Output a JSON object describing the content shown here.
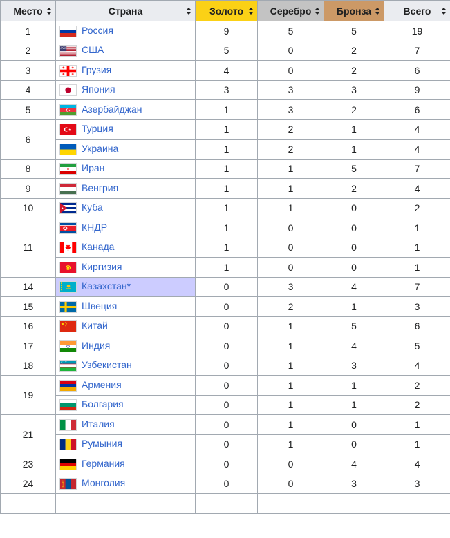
{
  "table": {
    "columns": [
      {
        "label": "Место"
      },
      {
        "label": "Страна"
      },
      {
        "label": "Золото",
        "bg": "#fbd116"
      },
      {
        "label": "Серебро",
        "bg": "#c3c3c3"
      },
      {
        "label": "Бронза",
        "bg": "#cc9966"
      },
      {
        "label": "Всего"
      }
    ],
    "rows": [
      {
        "place": "1",
        "span": 1,
        "country": "Россия",
        "flag": "russia",
        "gold": "9",
        "silver": "5",
        "bronze": "5",
        "total": "19"
      },
      {
        "place": "2",
        "span": 1,
        "country": "США",
        "flag": "usa",
        "gold": "5",
        "silver": "0",
        "bronze": "2",
        "total": "7"
      },
      {
        "place": "3",
        "span": 1,
        "country": "Грузия",
        "flag": "georgia",
        "gold": "4",
        "silver": "0",
        "bronze": "2",
        "total": "6"
      },
      {
        "place": "4",
        "span": 1,
        "country": "Япония",
        "flag": "japan",
        "gold": "3",
        "silver": "3",
        "bronze": "3",
        "total": "9"
      },
      {
        "place": "5",
        "span": 1,
        "country": "Азербайджан",
        "flag": "azerbaijan",
        "gold": "1",
        "silver": "3",
        "bronze": "2",
        "total": "6"
      },
      {
        "place": "6",
        "span": 2,
        "country": "Турция",
        "flag": "turkey",
        "gold": "1",
        "silver": "2",
        "bronze": "1",
        "total": "4"
      },
      {
        "country": "Украина",
        "flag": "ukraine",
        "gold": "1",
        "silver": "2",
        "bronze": "1",
        "total": "4"
      },
      {
        "place": "8",
        "span": 1,
        "country": "Иран",
        "flag": "iran",
        "gold": "1",
        "silver": "1",
        "bronze": "5",
        "total": "7"
      },
      {
        "place": "9",
        "span": 1,
        "country": "Венгрия",
        "flag": "hungary",
        "gold": "1",
        "silver": "1",
        "bronze": "2",
        "total": "4"
      },
      {
        "place": "10",
        "span": 1,
        "country": "Куба",
        "flag": "cuba",
        "gold": "1",
        "silver": "1",
        "bronze": "0",
        "total": "2"
      },
      {
        "place": "11",
        "span": 3,
        "country": "КНДР",
        "flag": "north-korea",
        "gold": "1",
        "silver": "0",
        "bronze": "0",
        "total": "1"
      },
      {
        "country": "Канада",
        "flag": "canada",
        "gold": "1",
        "silver": "0",
        "bronze": "0",
        "total": "1"
      },
      {
        "country": "Киргизия",
        "flag": "kyrgyzstan",
        "gold": "1",
        "silver": "0",
        "bronze": "0",
        "total": "1"
      },
      {
        "place": "14",
        "span": 1,
        "country": "Казахстан*",
        "flag": "kazakhstan",
        "highlight": true,
        "gold": "0",
        "silver": "3",
        "bronze": "4",
        "total": "7"
      },
      {
        "place": "15",
        "span": 1,
        "country": "Швеция",
        "flag": "sweden",
        "gold": "0",
        "silver": "2",
        "bronze": "1",
        "total": "3"
      },
      {
        "place": "16",
        "span": 1,
        "country": "Китай",
        "flag": "china",
        "gold": "0",
        "silver": "1",
        "bronze": "5",
        "total": "6"
      },
      {
        "place": "17",
        "span": 1,
        "country": "Индия",
        "flag": "india",
        "gold": "0",
        "silver": "1",
        "bronze": "4",
        "total": "5"
      },
      {
        "place": "18",
        "span": 1,
        "country": "Узбекистан",
        "flag": "uzbekistan",
        "gold": "0",
        "silver": "1",
        "bronze": "3",
        "total": "4"
      },
      {
        "place": "19",
        "span": 2,
        "country": "Армения",
        "flag": "armenia",
        "gold": "0",
        "silver": "1",
        "bronze": "1",
        "total": "2"
      },
      {
        "country": "Болгария",
        "flag": "bulgaria",
        "gold": "0",
        "silver": "1",
        "bronze": "1",
        "total": "2"
      },
      {
        "place": "21",
        "span": 2,
        "country": "Италия",
        "flag": "italy",
        "gold": "0",
        "silver": "1",
        "bronze": "0",
        "total": "1"
      },
      {
        "country": "Румыния",
        "flag": "romania",
        "gold": "0",
        "silver": "1",
        "bronze": "0",
        "total": "1"
      },
      {
        "place": "23",
        "span": 1,
        "country": "Германия",
        "flag": "germany",
        "gold": "0",
        "silver": "0",
        "bronze": "4",
        "total": "4"
      },
      {
        "place": "24",
        "span": 1,
        "country": "Монголия",
        "flag": "mongolia",
        "gold": "0",
        "silver": "0",
        "bronze": "3",
        "total": "3"
      }
    ]
  },
  "colors": {
    "link": "#3366cc",
    "highlight": "#ccccff",
    "border": "#a2a9b1",
    "header_bg": "#eaecf0",
    "gold_header": "#fbd116",
    "silver_header": "#c3c3c3",
    "bronze_header": "#cc9966"
  }
}
